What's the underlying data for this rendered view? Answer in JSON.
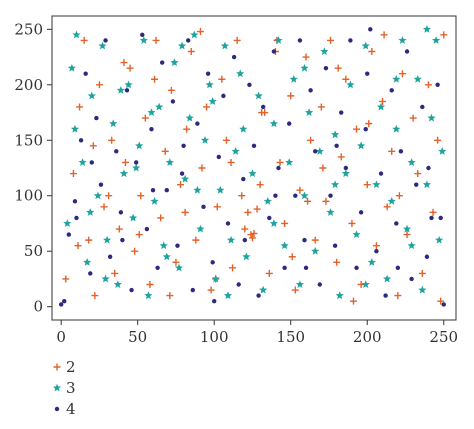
{
  "chart_data": {
    "type": "scatter",
    "title": "",
    "xlabel": "",
    "ylabel": "",
    "xlim": [
      -6,
      258
    ],
    "ylim": [
      -12,
      262
    ],
    "xticks": [
      0,
      50,
      100,
      150,
      200,
      250
    ],
    "yticks": [
      0,
      50,
      100,
      150,
      200,
      250
    ],
    "grid": false,
    "legend_position": "bottom-left",
    "series": [
      {
        "name": "2",
        "marker": "plus",
        "color": "#E2622A",
        "points": [
          [
            3,
            25
          ],
          [
            8,
            120
          ],
          [
            12,
            180
          ],
          [
            15,
            240
          ],
          [
            18,
            60
          ],
          [
            22,
            10
          ],
          [
            25,
            200
          ],
          [
            28,
            90
          ],
          [
            33,
            150
          ],
          [
            35,
            30
          ],
          [
            38,
            70
          ],
          [
            42,
            130
          ],
          [
            45,
            215
          ],
          [
            48,
            50
          ],
          [
            52,
            100
          ],
          [
            55,
            170
          ],
          [
            58,
            20
          ],
          [
            62,
            240
          ],
          [
            65,
            80
          ],
          [
            68,
            140
          ],
          [
            72,
            195
          ],
          [
            75,
            40
          ],
          [
            78,
            110
          ],
          [
            82,
            160
          ],
          [
            85,
            230
          ],
          [
            88,
            60
          ],
          [
            92,
            125
          ],
          [
            95,
            180
          ],
          [
            98,
            15
          ],
          [
            102,
            90
          ],
          [
            105,
            205
          ],
          [
            108,
            150
          ],
          [
            112,
            35
          ],
          [
            115,
            240
          ],
          [
            118,
            100
          ],
          [
            120,
            70
          ],
          [
            122,
            85
          ],
          [
            124,
            65
          ],
          [
            125,
            62
          ],
          [
            126,
            66
          ],
          [
            128,
            88
          ],
          [
            130,
            110
          ],
          [
            133,
            175
          ],
          [
            136,
            30
          ],
          [
            140,
            230
          ],
          [
            143,
            130
          ],
          [
            146,
            75
          ],
          [
            150,
            190
          ],
          [
            153,
            15
          ],
          [
            156,
            105
          ],
          [
            160,
            225
          ],
          [
            163,
            150
          ],
          [
            166,
            60
          ],
          [
            170,
            180
          ],
          [
            173,
            95
          ],
          [
            176,
            240
          ],
          [
            180,
            40
          ],
          [
            183,
            135
          ],
          [
            186,
            205
          ],
          [
            190,
            75
          ],
          [
            193,
            160
          ],
          [
            196,
            20
          ],
          [
            200,
            110
          ],
          [
            203,
            230
          ],
          [
            206,
            55
          ],
          [
            210,
            185
          ],
          [
            213,
            90
          ],
          [
            216,
            140
          ],
          [
            220,
            10
          ],
          [
            223,
            210
          ],
          [
            226,
            65
          ],
          [
            230,
            170
          ],
          [
            233,
            120
          ],
          [
            236,
            30
          ],
          [
            240,
            200
          ],
          [
            243,
            85
          ],
          [
            246,
            150
          ],
          [
            248,
            5
          ],
          [
            250,
            245
          ],
          [
            11,
            55
          ],
          [
            21,
            145
          ],
          [
            31,
            100
          ],
          [
            41,
            220
          ],
          [
            51,
            65
          ],
          [
            61,
            205
          ],
          [
            71,
            10
          ],
          [
            81,
            85
          ],
          [
            91,
            248
          ],
          [
            101,
            25
          ],
          [
            111,
            130
          ],
          [
            131,
            175
          ],
          [
            141,
            240
          ],
          [
            151,
            45
          ],
          [
            161,
            95
          ],
          [
            171,
            125
          ],
          [
            181,
            215
          ],
          [
            191,
            5
          ],
          [
            201,
            165
          ],
          [
            211,
            245
          ],
          [
            221,
            100
          ]
        ]
      },
      {
        "name": "3",
        "marker": "star",
        "color": "#20A39E",
        "points": [
          [
            4,
            75
          ],
          [
            7,
            215
          ],
          [
            10,
            245
          ],
          [
            14,
            130
          ],
          [
            17,
            40
          ],
          [
            20,
            190
          ],
          [
            24,
            100
          ],
          [
            27,
            235
          ],
          [
            30,
            60
          ],
          [
            34,
            165
          ],
          [
            37,
            20
          ],
          [
            41,
            120
          ],
          [
            44,
            200
          ],
          [
            47,
            80
          ],
          [
            51,
            145
          ],
          [
            54,
            240
          ],
          [
            57,
            10
          ],
          [
            61,
            95
          ],
          [
            64,
            180
          ],
          [
            67,
            55
          ],
          [
            71,
            130
          ],
          [
            74,
            220
          ],
          [
            77,
            35
          ],
          [
            81,
            115
          ],
          [
            84,
            170
          ],
          [
            87,
            245
          ],
          [
            91,
            70
          ],
          [
            94,
            150
          ],
          [
            97,
            200
          ],
          [
            101,
            25
          ],
          [
            104,
            105
          ],
          [
            107,
            235
          ],
          [
            111,
            60
          ],
          [
            114,
            140
          ],
          [
            117,
            210
          ],
          [
            121,
            45
          ],
          [
            125,
            120
          ],
          [
            129,
            190
          ],
          [
            132,
            15
          ],
          [
            135,
            95
          ],
          [
            139,
            165
          ],
          [
            142,
            240
          ],
          [
            146,
            55
          ],
          [
            149,
            130
          ],
          [
            152,
            205
          ],
          [
            156,
            20
          ],
          [
            159,
            100
          ],
          [
            162,
            175
          ],
          [
            166,
            50
          ],
          [
            169,
            140
          ],
          [
            172,
            230
          ],
          [
            176,
            85
          ],
          [
            179,
            155
          ],
          [
            182,
            10
          ],
          [
            186,
            120
          ],
          [
            189,
            200
          ],
          [
            193,
            65
          ],
          [
            196,
            145
          ],
          [
            199,
            235
          ],
          [
            203,
            40
          ],
          [
            206,
            110
          ],
          [
            209,
            180
          ],
          [
            213,
            25
          ],
          [
            216,
            95
          ],
          [
            219,
            160
          ],
          [
            223,
            240
          ],
          [
            226,
            70
          ],
          [
            229,
            130
          ],
          [
            233,
            205
          ],
          [
            236,
            15
          ],
          [
            239,
            110
          ],
          [
            242,
            170
          ],
          [
            245,
            240
          ],
          [
            247,
            60
          ],
          [
            249,
            140
          ],
          [
            9,
            160
          ],
          [
            19,
            85
          ],
          [
            29,
            25
          ],
          [
            39,
            195
          ],
          [
            49,
            125
          ],
          [
            59,
            175
          ],
          [
            69,
            45
          ],
          [
            79,
            235
          ],
          [
            89,
            105
          ],
          [
            99,
            185
          ],
          [
            109,
            10
          ],
          [
            119,
            160
          ],
          [
            139,
            75
          ],
          [
            159,
            215
          ],
          [
            179,
            110
          ],
          [
            199,
            20
          ],
          [
            219,
            205
          ],
          [
            229,
            55
          ],
          [
            239,
            250
          ]
        ]
      },
      {
        "name": "4",
        "marker": "dot",
        "color": "#2B2A7E",
        "points": [
          [
            0,
            2
          ],
          [
            2,
            5
          ],
          [
            5,
            65
          ],
          [
            9,
            95
          ],
          [
            13,
            150
          ],
          [
            16,
            210
          ],
          [
            19,
            30
          ],
          [
            23,
            170
          ],
          [
            26,
            110
          ],
          [
            29,
            240
          ],
          [
            32,
            45
          ],
          [
            36,
            140
          ],
          [
            39,
            85
          ],
          [
            43,
            195
          ],
          [
            46,
            15
          ],
          [
            49,
            130
          ],
          [
            53,
            245
          ],
          [
            56,
            70
          ],
          [
            59,
            160
          ],
          [
            63,
            35
          ],
          [
            66,
            220
          ],
          [
            69,
            105
          ],
          [
            73,
            185
          ],
          [
            76,
            55
          ],
          [
            79,
            120
          ],
          [
            83,
            240
          ],
          [
            86,
            15
          ],
          [
            89,
            165
          ],
          [
            93,
            90
          ],
          [
            96,
            210
          ],
          [
            99,
            40
          ],
          [
            103,
            135
          ],
          [
            106,
            190
          ],
          [
            109,
            75
          ],
          [
            113,
            225
          ],
          [
            116,
            20
          ],
          [
            119,
            115
          ],
          [
            123,
            200
          ],
          [
            126,
            145
          ],
          [
            129,
            10
          ],
          [
            132,
            180
          ],
          [
            136,
            80
          ],
          [
            139,
            230
          ],
          [
            142,
            125
          ],
          [
            146,
            35
          ],
          [
            149,
            165
          ],
          [
            153,
            100
          ],
          [
            156,
            240
          ],
          [
            159,
            60
          ],
          [
            163,
            195
          ],
          [
            166,
            140
          ],
          [
            169,
            20
          ],
          [
            173,
            215
          ],
          [
            176,
            100
          ],
          [
            179,
            55
          ],
          [
            183,
            175
          ],
          [
            186,
            125
          ],
          [
            189,
            240
          ],
          [
            193,
            35
          ],
          [
            196,
            85
          ],
          [
            199,
            160
          ],
          [
            202,
            250
          ],
          [
            206,
            50
          ],
          [
            209,
            120
          ],
          [
            212,
            10
          ],
          [
            216,
            195
          ],
          [
            219,
            75
          ],
          [
            222,
            140
          ],
          [
            226,
            230
          ],
          [
            229,
            25
          ],
          [
            232,
            110
          ],
          [
            236,
            180
          ],
          [
            239,
            45
          ],
          [
            242,
            80
          ],
          [
            246,
            200
          ],
          [
            250,
            2
          ],
          [
            10,
            80
          ],
          [
            20,
            130
          ],
          [
            40,
            60
          ],
          [
            60,
            105
          ],
          [
            80,
            145
          ],
          [
            100,
            5
          ],
          [
            120,
            60
          ],
          [
            140,
            100
          ],
          [
            160,
            35
          ],
          [
            180,
            145
          ],
          [
            200,
            210
          ],
          [
            220,
            35
          ],
          [
            240,
            125
          ],
          [
            248,
            80
          ]
        ]
      }
    ]
  }
}
